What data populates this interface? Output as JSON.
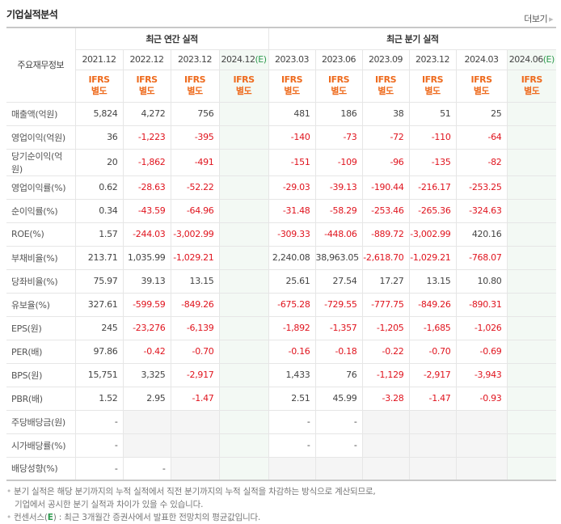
{
  "header": {
    "title": "기업실적분석",
    "more_label": "더보기"
  },
  "table": {
    "row_header_label": "주요재무정보",
    "groups": {
      "annual": "최근 연간 실적",
      "quarterly": "최근 분기 실적"
    },
    "annual_periods": [
      "2021.12",
      "2022.12",
      "2023.12",
      "2024.12"
    ],
    "quarterly_periods": [
      "2023.03",
      "2023.06",
      "2023.09",
      "2023.12",
      "2024.03",
      "2024.06"
    ],
    "estimate_suffix": "(E)",
    "ifrs_line1": "IFRS",
    "ifrs_line2": "별도",
    "rows": [
      {
        "label": "매출액(억원)",
        "values": [
          "5,824",
          "4,272",
          "756",
          "",
          "481",
          "186",
          "38",
          "51",
          "25",
          ""
        ]
      },
      {
        "label": "영업이익(억원)",
        "values": [
          "36",
          "-1,223",
          "-395",
          "",
          "-140",
          "-73",
          "-72",
          "-110",
          "-64",
          ""
        ]
      },
      {
        "label": "당기순이익(억원)",
        "values": [
          "20",
          "-1,862",
          "-491",
          "",
          "-151",
          "-109",
          "-96",
          "-135",
          "-82",
          ""
        ]
      },
      {
        "label": "영업이익률(%)",
        "values": [
          "0.62",
          "-28.63",
          "-52.22",
          "",
          "-29.03",
          "-39.13",
          "-190.44",
          "-216.17",
          "-253.25",
          ""
        ]
      },
      {
        "label": "순이익률(%)",
        "values": [
          "0.34",
          "-43.59",
          "-64.96",
          "",
          "-31.48",
          "-58.29",
          "-253.46",
          "-265.36",
          "-324.63",
          ""
        ]
      },
      {
        "label": "ROE(%)",
        "values": [
          "1.57",
          "-244.03",
          "-3,002.99",
          "",
          "-309.33",
          "-448.06",
          "-889.72",
          "-3,002.99",
          "420.16",
          ""
        ]
      },
      {
        "label": "부채비율(%)",
        "values": [
          "213.71",
          "1,035.99",
          "-1,029.21",
          "",
          "2,240.08",
          "38,963.05",
          "-2,618.70",
          "-1,029.21",
          "-768.07",
          ""
        ]
      },
      {
        "label": "당좌비율(%)",
        "values": [
          "75.97",
          "39.13",
          "13.15",
          "",
          "25.61",
          "27.54",
          "17.27",
          "13.15",
          "10.80",
          ""
        ]
      },
      {
        "label": "유보율(%)",
        "values": [
          "327.61",
          "-599.59",
          "-849.26",
          "",
          "-675.28",
          "-729.55",
          "-777.75",
          "-849.26",
          "-890.31",
          ""
        ]
      },
      {
        "label": "EPS(원)",
        "values": [
          "245",
          "-23,276",
          "-6,139",
          "",
          "-1,892",
          "-1,357",
          "-1,205",
          "-1,685",
          "-1,026",
          ""
        ]
      },
      {
        "label": "PER(배)",
        "values": [
          "97.86",
          "-0.42",
          "-0.70",
          "",
          "-0.16",
          "-0.18",
          "-0.22",
          "-0.70",
          "-0.69",
          ""
        ]
      },
      {
        "label": "BPS(원)",
        "values": [
          "15,751",
          "3,325",
          "-2,917",
          "",
          "1,433",
          "76",
          "-1,129",
          "-2,917",
          "-3,943",
          ""
        ]
      },
      {
        "label": "PBR(배)",
        "values": [
          "1.52",
          "2.95",
          "-1.47",
          "",
          "2.51",
          "45.99",
          "-3.28",
          "-1.47",
          "-0.93",
          ""
        ]
      },
      {
        "label": "주당배당금(원)",
        "values": [
          "-",
          "",
          "",
          "",
          "-",
          "-",
          "",
          "",
          "",
          ""
        ]
      },
      {
        "label": "시가배당률(%)",
        "values": [
          "-",
          "",
          "",
          "",
          "-",
          "-",
          "",
          "",
          "",
          ""
        ]
      },
      {
        "label": "배당성향(%)",
        "values": [
          "-",
          "-",
          "",
          "",
          "",
          "",
          "",
          "",
          "",
          ""
        ]
      }
    ]
  },
  "notes": {
    "line1": "분기 실적은 해당 분기까지의 누적 실적에서 직전 분기까지의 누적 실적을 차감하는 방식으로 계산되므로,",
    "line2": "기업에서 공시한 분기 실적과 차이가 있을 수 있습니다.",
    "line3_prefix": "컨센서스(",
    "line3_e": "E",
    "line3_suffix": ") : 최근 3개월간 증권사에서 발표한 전망치의 평균값입니다."
  },
  "colors": {
    "negative": "#e0141e",
    "ifrs": "#ee6b1e",
    "estimate_mark": "#2e9a4e",
    "estimate_bg": "#f3f9f4",
    "empty_bg": "#f5f5f5"
  }
}
